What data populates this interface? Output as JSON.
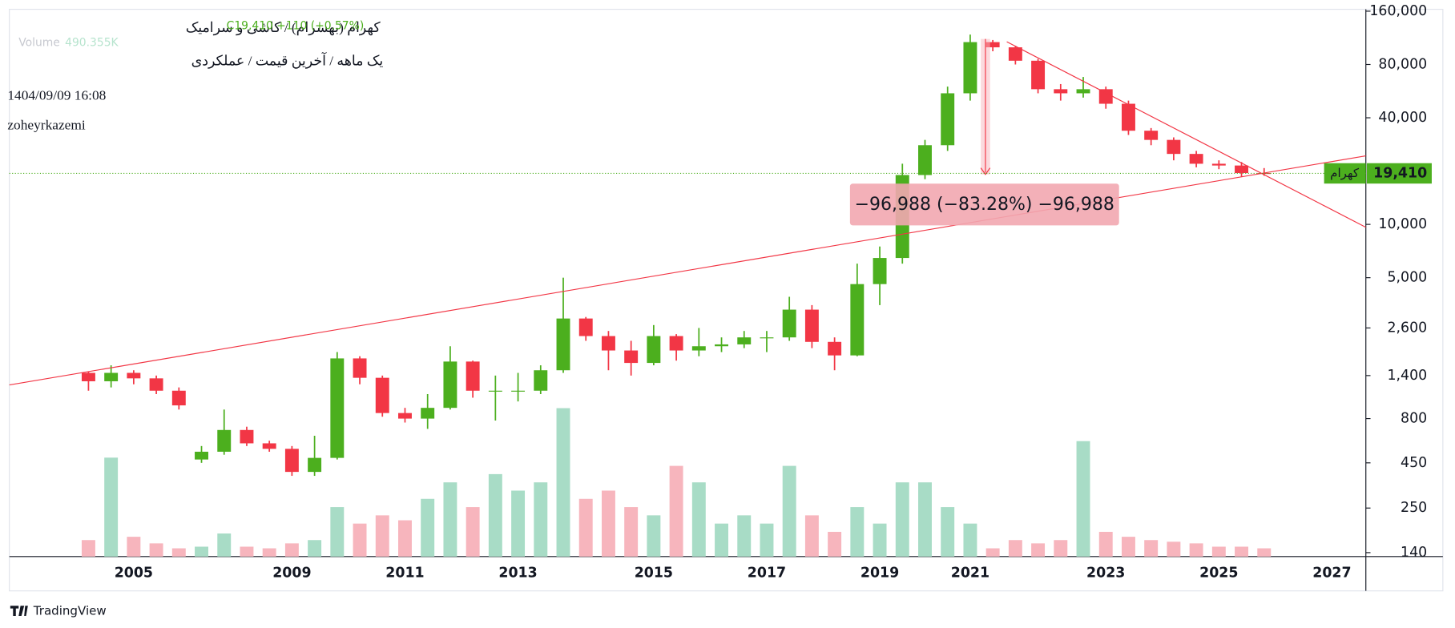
{
  "header": {
    "symbol_title": "کهرام (بهسرام) / کاشی و سرامیک",
    "subtitle": "یک ماهه / آخرین قیمت / عملکردی",
    "datetime": "1404/09/09 16:08",
    "author": "zoheyrkazemi",
    "close_label": "C19,410",
    "change_label": "+110 (+0.57%)",
    "volume_label": "Volume",
    "volume_value": "490.355K"
  },
  "measure_label": "−96,988 (−83.28%) −96,988",
  "symbol_tag": "کهرام",
  "brand": "TradingView",
  "chart_data": {
    "type": "candlestick",
    "log_scale": true,
    "up_color": "#4caf1e",
    "down_color": "#f23645",
    "volume_up_color": "#a8dcc6",
    "volume_down_color": "#f7b5bd",
    "categories": [
      null,
      null,
      null,
      null,
      null,
      2005,
      null,
      null,
      null,
      null,
      null,
      null,
      2009,
      null,
      null,
      null,
      null,
      2011,
      null,
      null,
      null,
      null,
      2013,
      null,
      null,
      null,
      null,
      null,
      2015,
      null,
      null,
      null,
      null,
      2017,
      null,
      null,
      null,
      null,
      2019,
      null,
      null,
      null,
      2021,
      null,
      null,
      null,
      null,
      null,
      2023,
      null,
      null,
      null,
      null,
      2025,
      null,
      null,
      null,
      null,
      2027,
      null
    ],
    "open": [
      null,
      null,
      null,
      1450,
      1300,
      1450,
      1350,
      1150,
      470,
      520,
      690,
      580,
      540,
      400,
      480,
      1750,
      1360,
      860,
      800,
      920,
      1680,
      1150,
      1150,
      1150,
      1500,
      2940,
      2340,
      1940,
      1650,
      2340,
      1940,
      2050,
      2100,
      2300,
      2300,
      3300,
      2170,
      1820,
      4600,
      6460,
      19000,
      28000,
      55000,
      107000,
      100000,
      84000,
      58000,
      55000,
      58000,
      48000,
      33800,
      30000,
      25000,
      22000,
      21500,
      19500,
      null,
      null,
      null,
      null
    ],
    "high": [
      null,
      null,
      null,
      1480,
      1600,
      1500,
      1400,
      1200,
      560,
      900,
      720,
      600,
      560,
      640,
      1900,
      1800,
      1400,
      920,
      1100,
      2050,
      1700,
      1400,
      1450,
      1600,
      5000,
      3000,
      2500,
      2200,
      2700,
      2400,
      2600,
      2300,
      2500,
      2500,
      3900,
      3500,
      2300,
      6000,
      7500,
      22000,
      30000,
      60000,
      118000,
      110000,
      102000,
      86000,
      62000,
      68000,
      60000,
      50000,
      35000,
      31000,
      26000,
      23000,
      22500,
      20800,
      null,
      null,
      null,
      null
    ],
    "low": [
      null,
      null,
      null,
      1150,
      1200,
      1250,
      1100,
      900,
      450,
      500,
      560,
      520,
      380,
      380,
      470,
      1250,
      820,
      760,
      700,
      900,
      1050,
      780,
      1000,
      1100,
      1450,
      2200,
      1500,
      1400,
      1600,
      1700,
      1800,
      1900,
      2000,
      1900,
      2200,
      2000,
      1500,
      1800,
      3500,
      6000,
      18000,
      26000,
      50000,
      95000,
      80000,
      55000,
      50000,
      52000,
      45000,
      32000,
      28000,
      23000,
      21000,
      20500,
      18500,
      18800,
      null,
      null,
      null,
      null
    ],
    "close": [
      null,
      null,
      null,
      1300,
      1450,
      1350,
      1150,
      950,
      520,
      690,
      580,
      540,
      400,
      480,
      1750,
      1360,
      860,
      800,
      920,
      1680,
      1150,
      1150,
      1150,
      1500,
      2940,
      2340,
      1940,
      1650,
      2340,
      1940,
      2050,
      2100,
      2300,
      2300,
      3300,
      2170,
      1820,
      4600,
      6460,
      19000,
      28000,
      55000,
      107000,
      100000,
      84000,
      58000,
      55000,
      58000,
      48000,
      33800,
      30000,
      25000,
      22000,
      21500,
      19500,
      19410,
      null,
      null,
      null,
      null
    ],
    "volume": [
      null,
      null,
      null,
      10,
      60,
      12,
      8,
      5,
      6,
      14,
      6,
      5,
      8,
      10,
      30,
      20,
      25,
      22,
      35,
      45,
      30,
      50,
      40,
      45,
      90,
      35,
      40,
      30,
      25,
      55,
      45,
      20,
      25,
      20,
      55,
      25,
      15,
      30,
      20,
      45,
      45,
      30,
      20,
      5,
      10,
      8,
      10,
      70,
      15,
      12,
      10,
      9,
      8,
      6,
      6,
      5,
      null,
      null,
      null,
      null
    ],
    "last_value": 19410,
    "last_value_label": "19,410",
    "ylim": [
      133,
      164000
    ],
    "yticks": [
      140,
      250,
      450,
      800,
      {
        "value": 1400,
        "label": "1,400"
      },
      {
        "value": 2600,
        "label": "2,600"
      },
      {
        "value": 5000,
        "label": "5,000"
      },
      {
        "value": 10000,
        "label": "10,000"
      },
      {
        "value": 40000,
        "label": "40,000"
      },
      {
        "value": 80000,
        "label": "80,000"
      },
      {
        "value": 160000,
        "label": "160,000"
      }
    ],
    "grid": false
  }
}
